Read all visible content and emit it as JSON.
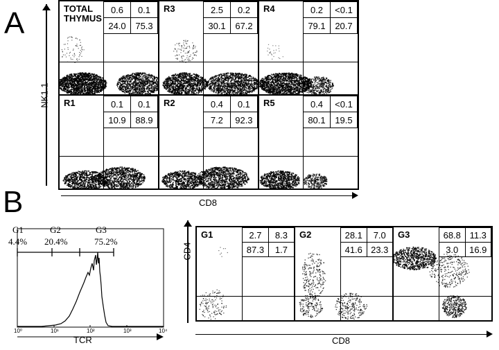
{
  "panel_a": {
    "letter": "A",
    "y_axis": "NK1.1",
    "x_axis": "CD8",
    "subpanels": [
      {
        "label": "TOTAL THYMUS",
        "values": [
          "0.6",
          "0.1",
          "24.0",
          "75.3"
        ]
      },
      {
        "label": "R3",
        "values": [
          "2.5",
          "0.2",
          "30.1",
          "67.2"
        ]
      },
      {
        "label": "R4",
        "values": [
          "0.2",
          "<0.1",
          "79.1",
          "20.7"
        ]
      },
      {
        "label": "R1",
        "values": [
          "0.1",
          "0.1",
          "10.9",
          "88.9"
        ]
      },
      {
        "label": "R2",
        "values": [
          "0.4",
          "0.1",
          "7.2",
          "92.3"
        ]
      },
      {
        "label": "R5",
        "values": [
          "0.4",
          "<0.1",
          "80.1",
          "19.5"
        ]
      }
    ]
  },
  "panel_b": {
    "letter": "B",
    "histogram": {
      "x_axis": "TCR",
      "gates": [
        "G1",
        "G2",
        "G3"
      ],
      "percents": [
        "4.4%",
        "20.4%",
        "75.2%"
      ],
      "ticks": [
        "10⁰",
        "10¹",
        "10²",
        "10³",
        "10⁴"
      ]
    },
    "y_axis": "CD4",
    "x_axis": "CD8",
    "subpanels": [
      {
        "label": "G1",
        "values": [
          "2.7",
          "8.3",
          "87.3",
          "1.7"
        ]
      },
      {
        "label": "G2",
        "values": [
          "28.1",
          "7.0",
          "41.6",
          "23.3"
        ]
      },
      {
        "label": "G3",
        "values": [
          "68.8",
          "11.3",
          "3.0",
          "16.9"
        ]
      }
    ]
  }
}
